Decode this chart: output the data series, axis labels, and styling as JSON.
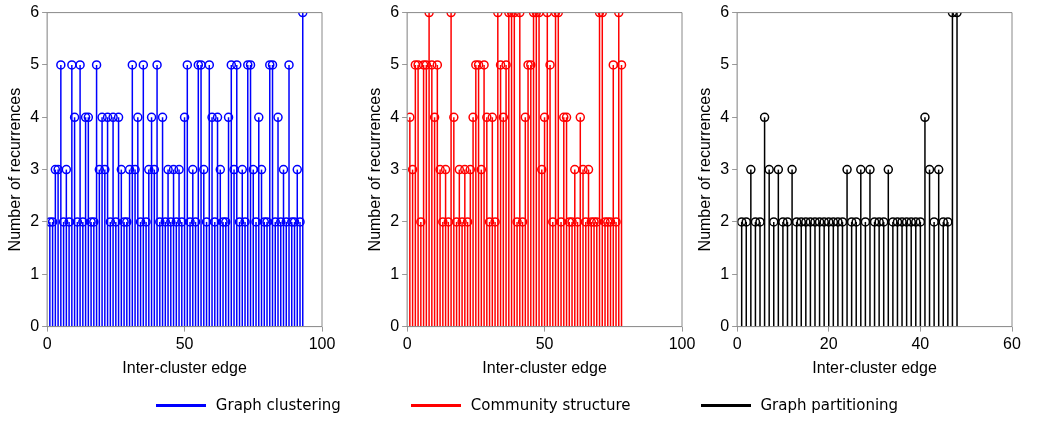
{
  "chart_data": [
    {
      "type": "lollipop",
      "xlabel": "Inter-cluster edge",
      "ylabel": "Number of recurrences",
      "xlim": [
        0,
        100
      ],
      "xticks": [
        0,
        50,
        100
      ],
      "ylim": [
        0,
        6
      ],
      "yticks": [
        0,
        1,
        2,
        3,
        4,
        5,
        6
      ],
      "grid": false,
      "marker": "circle",
      "legend": "bottom",
      "x": [
        1,
        2,
        3,
        4,
        5,
        6,
        7,
        8,
        9,
        10,
        11,
        12,
        13,
        14,
        15,
        16,
        17,
        18,
        19,
        20,
        21,
        22,
        23,
        24,
        25,
        26,
        27,
        28,
        29,
        30,
        31,
        32,
        33,
        34,
        35,
        36,
        37,
        38,
        39,
        40,
        41,
        42,
        43,
        44,
        45,
        46,
        47,
        48,
        49,
        50,
        51,
        52,
        53,
        54,
        55,
        56,
        57,
        58,
        59,
        60,
        61,
        62,
        63,
        64,
        65,
        66,
        67,
        68,
        69,
        70,
        71,
        72,
        73,
        74,
        75,
        76,
        77,
        78,
        79,
        80,
        81,
        82,
        83,
        84,
        85,
        86,
        87,
        88,
        89,
        90,
        91,
        92,
        93
      ],
      "series": [
        {
          "name": "Graph clustering",
          "color": "#0000ff",
          "values": [
            2,
            2,
            3,
            3,
            5,
            2,
            3,
            2,
            5,
            4,
            2,
            5,
            2,
            4,
            4,
            2,
            2,
            5,
            3,
            4,
            3,
            4,
            2,
            4,
            2,
            4,
            3,
            2,
            2,
            3,
            5,
            3,
            4,
            2,
            5,
            2,
            3,
            4,
            3,
            5,
            2,
            4,
            2,
            3,
            2,
            3,
            2,
            3,
            2,
            4,
            5,
            2,
            3,
            2,
            5,
            5,
            3,
            2,
            5,
            4,
            2,
            4,
            3,
            2,
            2,
            4,
            5,
            3,
            5,
            2,
            3,
            2,
            5,
            5,
            3,
            2,
            4,
            3,
            2,
            2,
            5,
            5,
            2,
            4,
            2,
            3,
            2,
            5,
            2,
            2,
            3,
            2,
            6
          ]
        }
      ]
    },
    {
      "type": "lollipop",
      "xlabel": "Inter-cluster edge",
      "ylabel": "Number of recurrences",
      "xlim": [
        0,
        100
      ],
      "xticks": [
        0,
        50,
        100
      ],
      "ylim": [
        0,
        6
      ],
      "yticks": [
        0,
        1,
        2,
        3,
        4,
        5,
        6
      ],
      "grid": false,
      "marker": "circle",
      "legend": "bottom",
      "x": [
        1,
        2,
        3,
        4,
        5,
        6,
        7,
        8,
        9,
        10,
        11,
        12,
        13,
        14,
        15,
        16,
        17,
        18,
        19,
        20,
        21,
        22,
        23,
        24,
        25,
        26,
        27,
        28,
        29,
        30,
        31,
        32,
        33,
        34,
        35,
        36,
        37,
        38,
        39,
        40,
        41,
        42,
        43,
        44,
        45,
        46,
        47,
        48,
        49,
        50,
        51,
        52,
        53,
        54,
        55,
        56,
        57,
        58,
        59,
        60,
        61,
        62,
        63,
        64,
        65,
        66,
        67,
        68,
        69,
        70,
        71,
        72,
        73,
        74,
        75,
        76,
        77,
        78
      ],
      "series": [
        {
          "name": "Community structure",
          "color": "#ff0000",
          "values": [
            4,
            3,
            5,
            5,
            2,
            5,
            5,
            6,
            5,
            4,
            5,
            3,
            2,
            3,
            2,
            6,
            4,
            2,
            3,
            2,
            3,
            2,
            3,
            4,
            5,
            5,
            3,
            5,
            4,
            2,
            4,
            2,
            6,
            5,
            4,
            5,
            6,
            6,
            6,
            2,
            6,
            2,
            4,
            5,
            5,
            6,
            6,
            6,
            3,
            4,
            6,
            5,
            2,
            6,
            6,
            2,
            4,
            4,
            2,
            2,
            3,
            2,
            4,
            3,
            2,
            3,
            2,
            2,
            2,
            6,
            6,
            2,
            2,
            2,
            5,
            2,
            6,
            5
          ]
        }
      ]
    },
    {
      "type": "lollipop",
      "xlabel": "Inter-cluster edge",
      "ylabel": "Number of recurrences",
      "xlim": [
        0,
        60
      ],
      "xticks": [
        0,
        20,
        40,
        60
      ],
      "ylim": [
        0,
        6
      ],
      "yticks": [
        0,
        1,
        2,
        3,
        4,
        5,
        6
      ],
      "grid": false,
      "marker": "circle",
      "legend": "bottom",
      "x": [
        1,
        2,
        3,
        4,
        5,
        6,
        7,
        8,
        9,
        10,
        11,
        12,
        13,
        14,
        15,
        16,
        17,
        18,
        19,
        20,
        21,
        22,
        23,
        24,
        25,
        26,
        27,
        28,
        29,
        30,
        31,
        32,
        33,
        34,
        35,
        36,
        37,
        38,
        39,
        40,
        41,
        42,
        43,
        44,
        45,
        46,
        47,
        48
      ],
      "series": [
        {
          "name": "Graph partitioning",
          "color": "#000000",
          "values": [
            2,
            2,
            3,
            2,
            2,
            4,
            3,
            2,
            3,
            2,
            2,
            3,
            2,
            2,
            2,
            2,
            2,
            2,
            2,
            2,
            2,
            2,
            2,
            3,
            2,
            2,
            3,
            2,
            3,
            2,
            2,
            2,
            3,
            2,
            2,
            2,
            2,
            2,
            2,
            2,
            4,
            3,
            2,
            3,
            2,
            2,
            6,
            6
          ]
        }
      ]
    }
  ]
}
